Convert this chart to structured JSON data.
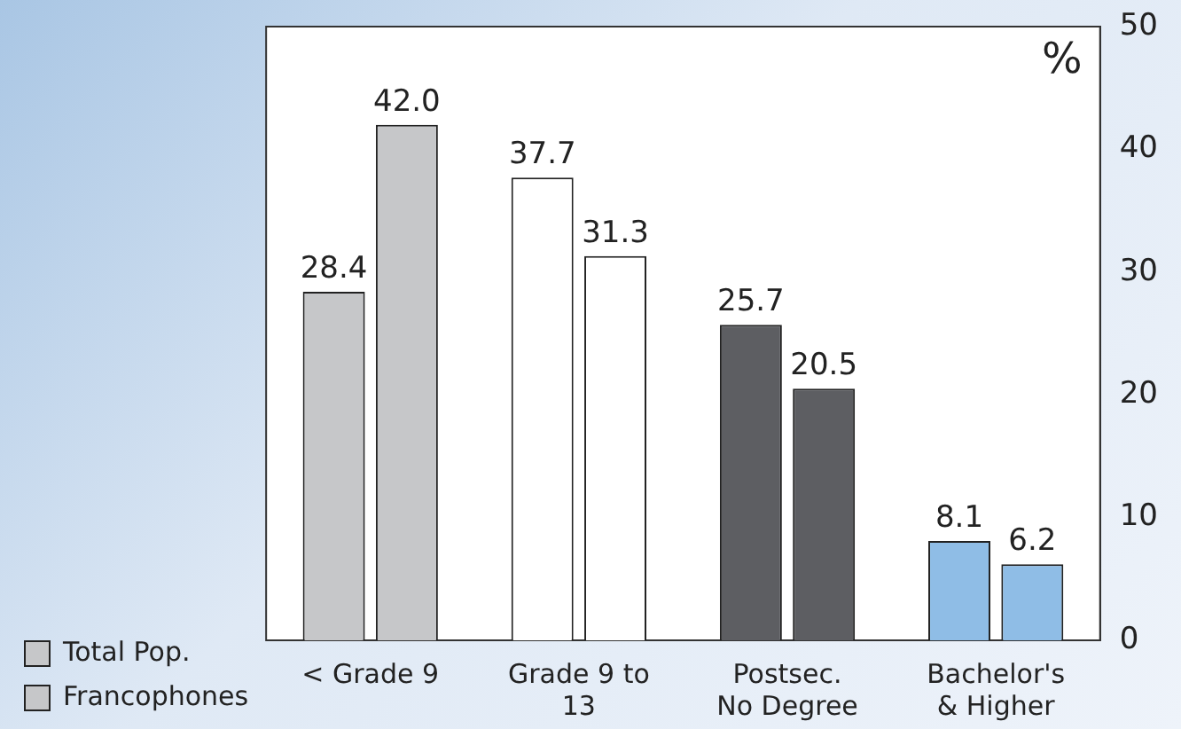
{
  "chart_data": {
    "type": "bar",
    "ylabel": "%",
    "categories": [
      "< Grade 9",
      "Grade 9 to 13",
      "Postsec. No Degree",
      "Bachelor's & Higher"
    ],
    "series": [
      {
        "name": "Total Pop.",
        "colors": [
          "#c6c7c9",
          "#ffffff",
          "#5d5e62",
          "#8fbde6"
        ],
        "values": [
          28.4,
          37.7,
          25.7,
          8.1
        ],
        "value_labels": [
          "28.4",
          "37.7",
          "25.7",
          "8.1"
        ]
      },
      {
        "name": "Francophones",
        "colors": [
          "#c6c7c9",
          "#ffffff",
          "#5d5e62",
          "#8fbde6"
        ],
        "values": [
          42.0,
          31.3,
          20.5,
          6.2
        ],
        "value_labels": [
          "42.0",
          "31.3",
          "20.5",
          "6.2"
        ]
      }
    ],
    "ylim": [
      0,
      50
    ],
    "yticks": [
      0,
      10,
      20,
      30,
      40,
      50
    ],
    "legend": "bottom left"
  }
}
